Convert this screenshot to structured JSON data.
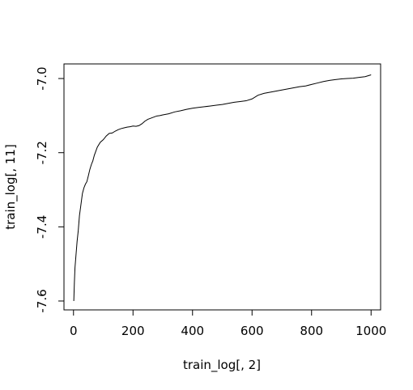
{
  "chart_data": {
    "type": "line",
    "title": "",
    "xlabel": "train_log[, 2]",
    "ylabel": "train_log[, 11]",
    "xlim": [
      -32,
      1032
    ],
    "ylim": [
      -7.624,
      -6.9606
    ],
    "x_ticks": [
      0,
      200,
      400,
      600,
      800,
      1000
    ],
    "x_tick_labels": [
      "0",
      "200",
      "400",
      "600",
      "800",
      "1000"
    ],
    "y_ticks": [
      -7.6,
      -7.4,
      -7.2,
      -7.0
    ],
    "y_tick_labels": [
      "-7.6",
      "-7.4",
      "-7.2",
      "-7.0"
    ],
    "grid": false,
    "series": [
      {
        "color": "#000000",
        "x": [
          1,
          3,
          5,
          8,
          12,
          16,
          20,
          25,
          30,
          35,
          40,
          45,
          50,
          55,
          60,
          65,
          70,
          80,
          90,
          100,
          110,
          120,
          130,
          140,
          150,
          160,
          170,
          180,
          190,
          200,
          210,
          220,
          230,
          240,
          250,
          260,
          270,
          280,
          290,
          300,
          320,
          340,
          360,
          380,
          400,
          420,
          440,
          460,
          480,
          500,
          520,
          540,
          560,
          580,
          600,
          620,
          640,
          660,
          680,
          700,
          720,
          740,
          760,
          780,
          800,
          820,
          840,
          860,
          880,
          900,
          920,
          940,
          960,
          980,
          1000
        ],
        "y": [
          -7.6,
          -7.55,
          -7.51,
          -7.48,
          -7.44,
          -7.41,
          -7.37,
          -7.34,
          -7.31,
          -7.295,
          -7.285,
          -7.278,
          -7.262,
          -7.245,
          -7.232,
          -7.222,
          -7.207,
          -7.185,
          -7.172,
          -7.165,
          -7.155,
          -7.148,
          -7.147,
          -7.142,
          -7.138,
          -7.135,
          -7.133,
          -7.131,
          -7.13,
          -7.128,
          -7.129,
          -7.127,
          -7.122,
          -7.115,
          -7.11,
          -7.107,
          -7.104,
          -7.101,
          -7.1,
          -7.098,
          -7.095,
          -7.09,
          -7.087,
          -7.083,
          -7.08,
          -7.078,
          -7.076,
          -7.074,
          -7.072,
          -7.07,
          -7.067,
          -7.064,
          -7.062,
          -7.06,
          -7.055,
          -7.045,
          -7.04,
          -7.037,
          -7.034,
          -7.031,
          -7.028,
          -7.025,
          -7.022,
          -7.02,
          -7.016,
          -7.012,
          -7.008,
          -7.005,
          -7.003,
          -7.001,
          -7.0,
          -6.999,
          -6.997,
          -6.995,
          -6.99
        ]
      }
    ]
  }
}
